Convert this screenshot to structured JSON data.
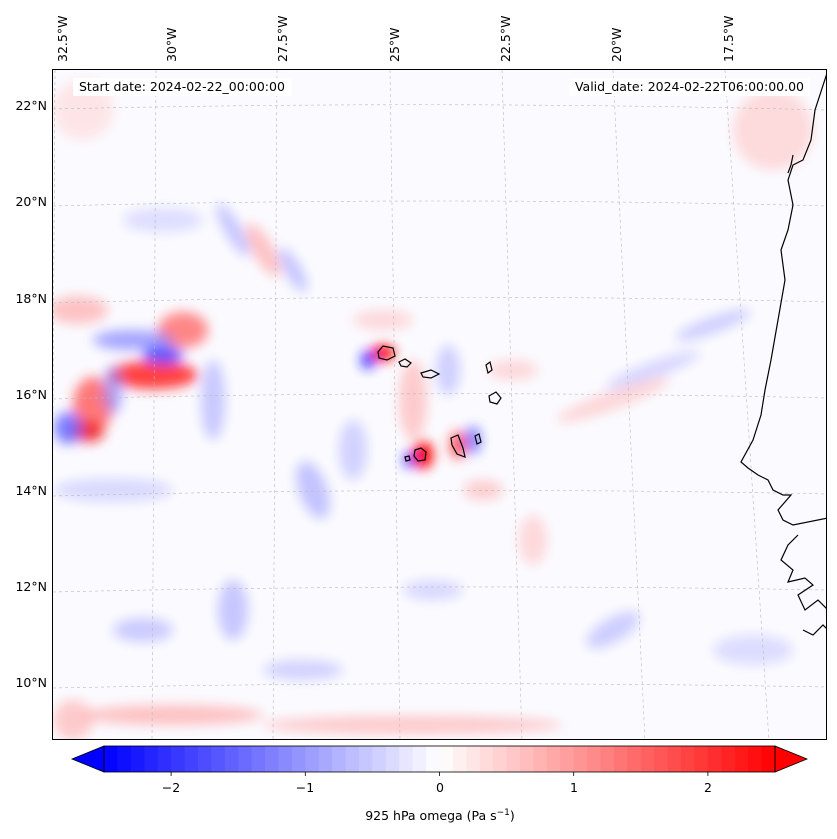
{
  "map": {
    "start_date_label": "Start date: 2024-02-22_00:00:00",
    "valid_date_label": "Valid_date: 2024-02-22T06:00:00.00",
    "longitude_labels": [
      "32.5°W",
      "30°W",
      "27.5°W",
      "25°W",
      "22.5°W",
      "20°W",
      "17.5°W"
    ],
    "latitude_labels": [
      "22°N",
      "20°N",
      "18°N",
      "16°N",
      "14°N",
      "12°N",
      "10°N"
    ],
    "lon_range": [
      -32.5,
      -15.0
    ],
    "lat_range": [
      8.9,
      22.8
    ],
    "colors": {
      "positive": "#ff0000",
      "negative": "#0000ff",
      "neutral": "#ffffff",
      "coast": "#000000"
    }
  },
  "colorbar": {
    "label_prefix": "925 hPa omega (Pa s",
    "label_exp": "−1",
    "label_suffix": ")",
    "tick_labels": [
      "−2",
      "−1",
      "0",
      "1",
      "2"
    ],
    "range": [
      -2.5,
      2.5
    ],
    "extend": "both"
  }
}
